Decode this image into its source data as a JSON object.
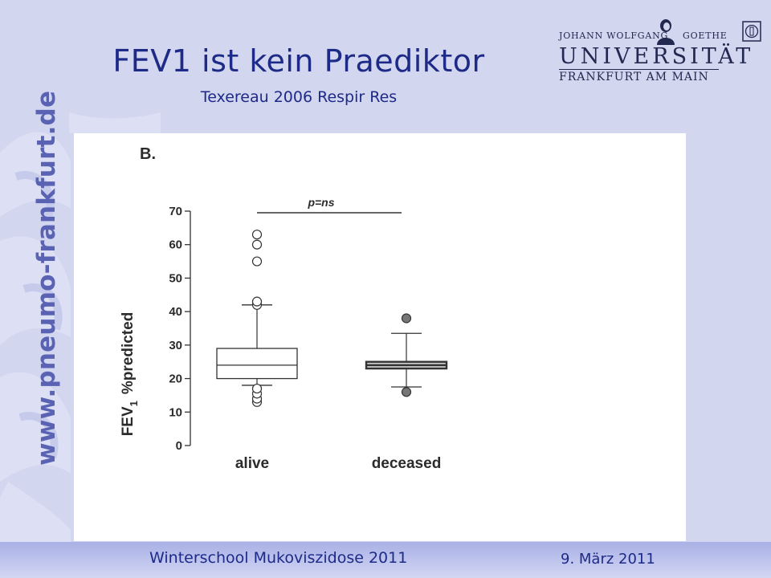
{
  "slide": {
    "title": "FEV1 ist kein Praediktor",
    "subtitle": "Texereau 2006 Respir Res",
    "side_url": "www.pneumo-frankfurt.de",
    "footer_left": "Winterschool Mukoviszidose 2011",
    "footer_right": "9. März 2011"
  },
  "logo": {
    "top_left": "JOHANN WOLFGANG",
    "top_right": "GOETHE",
    "university": "UNIVERSITÄT",
    "city": "FRANKFURT AM MAIN"
  },
  "icons": {
    "corner": "university-seal-icon",
    "portrait": "goethe-portrait-icon"
  },
  "colors": {
    "accent": "#1d2a87",
    "background": "#d2d6ef",
    "deceased_box_fill": "#cfcfcf"
  },
  "chart_data": {
    "type": "box",
    "panel_label": "B.",
    "ylabel_main": "FEV",
    "ylabel_sub": "1",
    "ylabel_rest": "%predicted",
    "ylim": [
      0,
      70
    ],
    "yticks": [
      0,
      10,
      20,
      30,
      40,
      50,
      60,
      70
    ],
    "categories": [
      "alive",
      "deceased"
    ],
    "boxes": [
      {
        "category": "alive",
        "whisker_low": 18,
        "q1": 20,
        "median": 24,
        "q3": 29,
        "whisker_high": 42,
        "outliers": [
          13,
          14,
          15.5,
          17,
          42,
          43,
          55,
          60,
          63
        ],
        "filled": false
      },
      {
        "category": "deceased",
        "whisker_low": 17.5,
        "q1": 23,
        "median": 24,
        "q3": 25,
        "whisker_high": 33.5,
        "outliers": [
          16,
          38
        ],
        "filled": true
      }
    ],
    "annotation": "p=ns"
  }
}
